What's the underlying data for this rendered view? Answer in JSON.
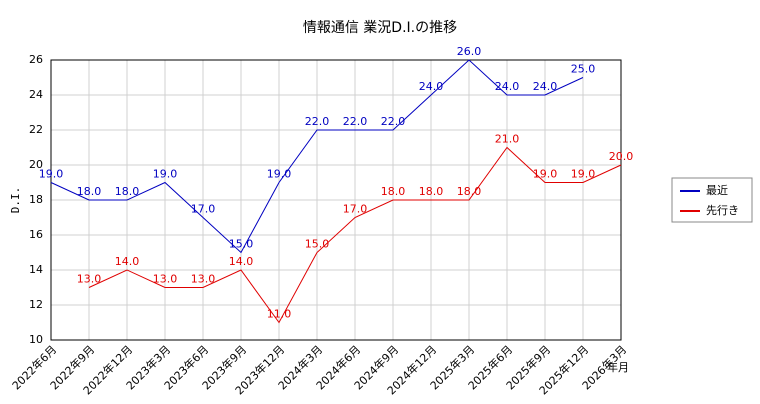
{
  "chart_data": {
    "type": "line",
    "title": "情報通信 業況D.I.の推移",
    "xlabel": "年月",
    "ylabel": "D.I.",
    "categories": [
      "2022年6月",
      "2022年9月",
      "2022年12月",
      "2023年3月",
      "2023年6月",
      "2023年9月",
      "2023年12月",
      "2024年3月",
      "2024年6月",
      "2024年9月",
      "2024年12月",
      "2025年3月",
      "2025年6月",
      "2025年9月",
      "2025年12月",
      "2026年3月"
    ],
    "series": [
      {
        "name": "最近",
        "color": "#0000c0",
        "values": [
          19,
          18,
          18,
          19,
          17,
          15,
          19,
          22,
          22,
          22,
          24,
          26,
          24,
          24,
          25,
          null
        ],
        "value_labels": [
          "19.0",
          "18.0",
          "18.0",
          "19.0",
          "17.0",
          "15.0",
          "19.0",
          "22.0",
          "22.0",
          "22.0",
          "24.0",
          "26.0",
          "24.0",
          "24.0",
          "25.0",
          null
        ]
      },
      {
        "name": "先行き",
        "color": "#e00000",
        "values": [
          null,
          13,
          14,
          13,
          13,
          14,
          11,
          15,
          17,
          18,
          18,
          18,
          21,
          19,
          19,
          20
        ],
        "value_labels": [
          null,
          "13.0",
          "14.0",
          "13.0",
          "13.0",
          "14.0",
          "11.0",
          "15.0",
          "17.0",
          "18.0",
          "18.0",
          "18.0",
          "21.0",
          "19.0",
          "19.0",
          "20.0"
        ]
      }
    ],
    "ylim": [
      10,
      26
    ],
    "yticks": [
      10,
      12,
      14,
      16,
      18,
      20,
      22,
      24,
      26
    ],
    "grid": true,
    "legend": "right"
  }
}
